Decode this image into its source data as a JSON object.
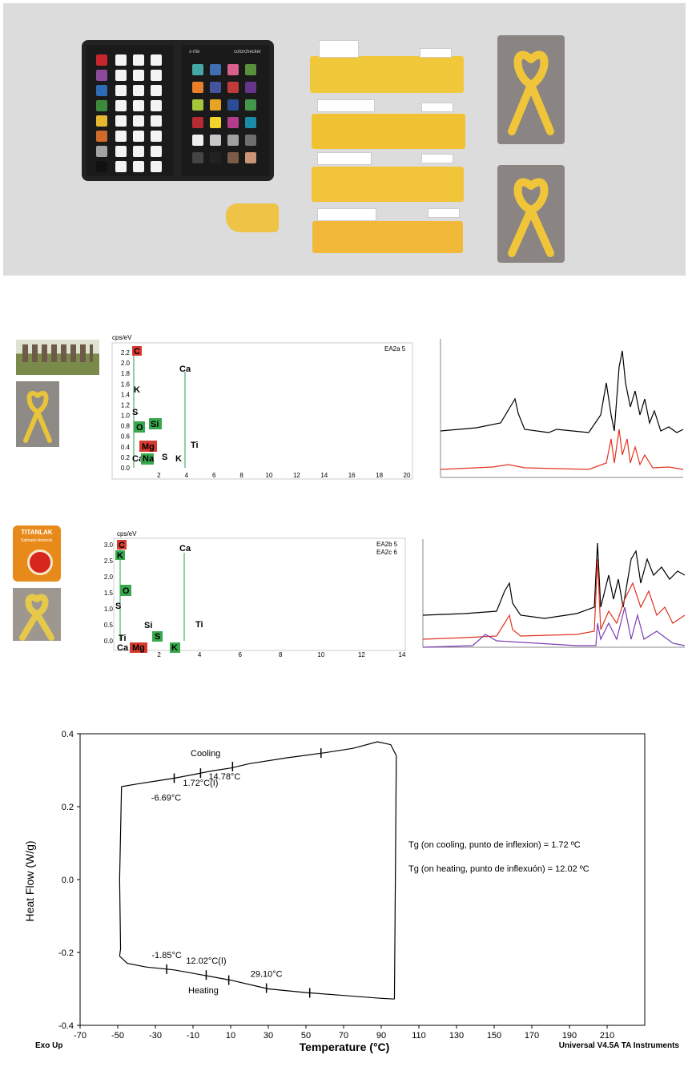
{
  "photo": {
    "checker_brand": "x-rite",
    "checker_title": "colorchecker",
    "colors": {
      "background": "#dcdcdc",
      "strip": "#f1c83a",
      "stone": "#8a8583"
    }
  },
  "eds1": {
    "axis_unit": "cps/eV",
    "legend": "EA2a 5",
    "y_ticks": [
      "2.2",
      "2.0",
      "1.8",
      "1.6",
      "1.4",
      "1.2",
      "1.0",
      "0.8",
      "0.6",
      "0.4",
      "0.2",
      "0.0"
    ],
    "x_ticks": [
      "2",
      "4",
      "6",
      "8",
      "10",
      "12",
      "14",
      "16",
      "18",
      "20"
    ],
    "element_labels": [
      "C",
      "Ca",
      "K",
      "S",
      "Si",
      "O",
      "Mg",
      "Ti",
      "S",
      "K",
      "Ca",
      "Na"
    ]
  },
  "eds2": {
    "axis_unit": "cps/eV",
    "legend_1": "EA2b 5",
    "legend_2": "EA2c 6",
    "y_ticks": [
      "3.0",
      "2.5",
      "2.0",
      "1.5",
      "1.0",
      "0.5",
      "0.0"
    ],
    "x_ticks": [
      "2",
      "4",
      "6",
      "8",
      "10",
      "12",
      "14"
    ],
    "element_labels": [
      "C",
      "K",
      "Ca",
      "O",
      "S",
      "Si",
      "S",
      "Ti",
      "Ti",
      "Ca",
      "Mg",
      "K"
    ]
  },
  "paint_can": {
    "brand": "TITANLAK",
    "sub": "Satinado Antioxid."
  },
  "dsc": {
    "footer_left": "Exo Up",
    "footer_right": "Universal V4.5A TA Instruments",
    "note_cooling": "Tg (on cooling, punto de inflexion) = 1.72 ºC",
    "note_heating": "Tg (on heating, punto de inflexuón) = 12.02 ºC"
  },
  "chart_data": {
    "type": "line",
    "xlabel": "Temperature (°C)",
    "ylabel": "Heat Flow (W/g)",
    "xlim": [
      -70,
      230
    ],
    "ylim": [
      -0.4,
      0.4
    ],
    "x_ticks": [
      "-70",
      "-50",
      "-30",
      "-10",
      "10",
      "30",
      "50",
      "70",
      "90",
      "110",
      "130",
      "150",
      "170",
      "190",
      "210"
    ],
    "y_ticks": [
      "0.4",
      "0.2",
      "0.0",
      "-0.2",
      "-0.4"
    ],
    "series": [
      {
        "name": "Cooling",
        "x": [
          -48,
          -40,
          -30,
          -20,
          -8,
          0,
          10,
          20,
          40,
          60,
          75,
          88,
          95,
          98
        ],
        "y": [
          0.255,
          0.262,
          0.27,
          0.278,
          0.29,
          0.298,
          0.306,
          0.318,
          0.334,
          0.348,
          0.36,
          0.378,
          0.37,
          0.34
        ]
      },
      {
        "name": "Heating",
        "x": [
          -49,
          -45,
          -35,
          -20,
          -5,
          10,
          30,
          50,
          70,
          90,
          97
        ],
        "y": [
          -0.21,
          -0.23,
          -0.24,
          -0.248,
          -0.262,
          -0.276,
          -0.3,
          -0.31,
          -0.318,
          -0.326,
          -0.328
        ]
      }
    ],
    "markers": [
      {
        "label": "-6.69°C",
        "x": -20,
        "y": 0.278
      },
      {
        "label": "1.72°C(I)",
        "x": -6,
        "y": 0.292
      },
      {
        "label": "14.78°C",
        "x": 11,
        "y": 0.31
      },
      {
        "label": "",
        "x": 58,
        "y": 0.347
      },
      {
        "label": "-1.85°C",
        "x": -24,
        "y": -0.246
      },
      {
        "label": "12.02°C(I)",
        "x": -3,
        "y": -0.262
      },
      {
        "label": "",
        "x": 9,
        "y": -0.276
      },
      {
        "label": "29.10°C",
        "x": 29,
        "y": -0.298
      },
      {
        "label": "",
        "x": 52,
        "y": -0.311
      }
    ],
    "annotations": {
      "cooling": "Cooling",
      "heating": "Heating"
    },
    "grid": false
  }
}
